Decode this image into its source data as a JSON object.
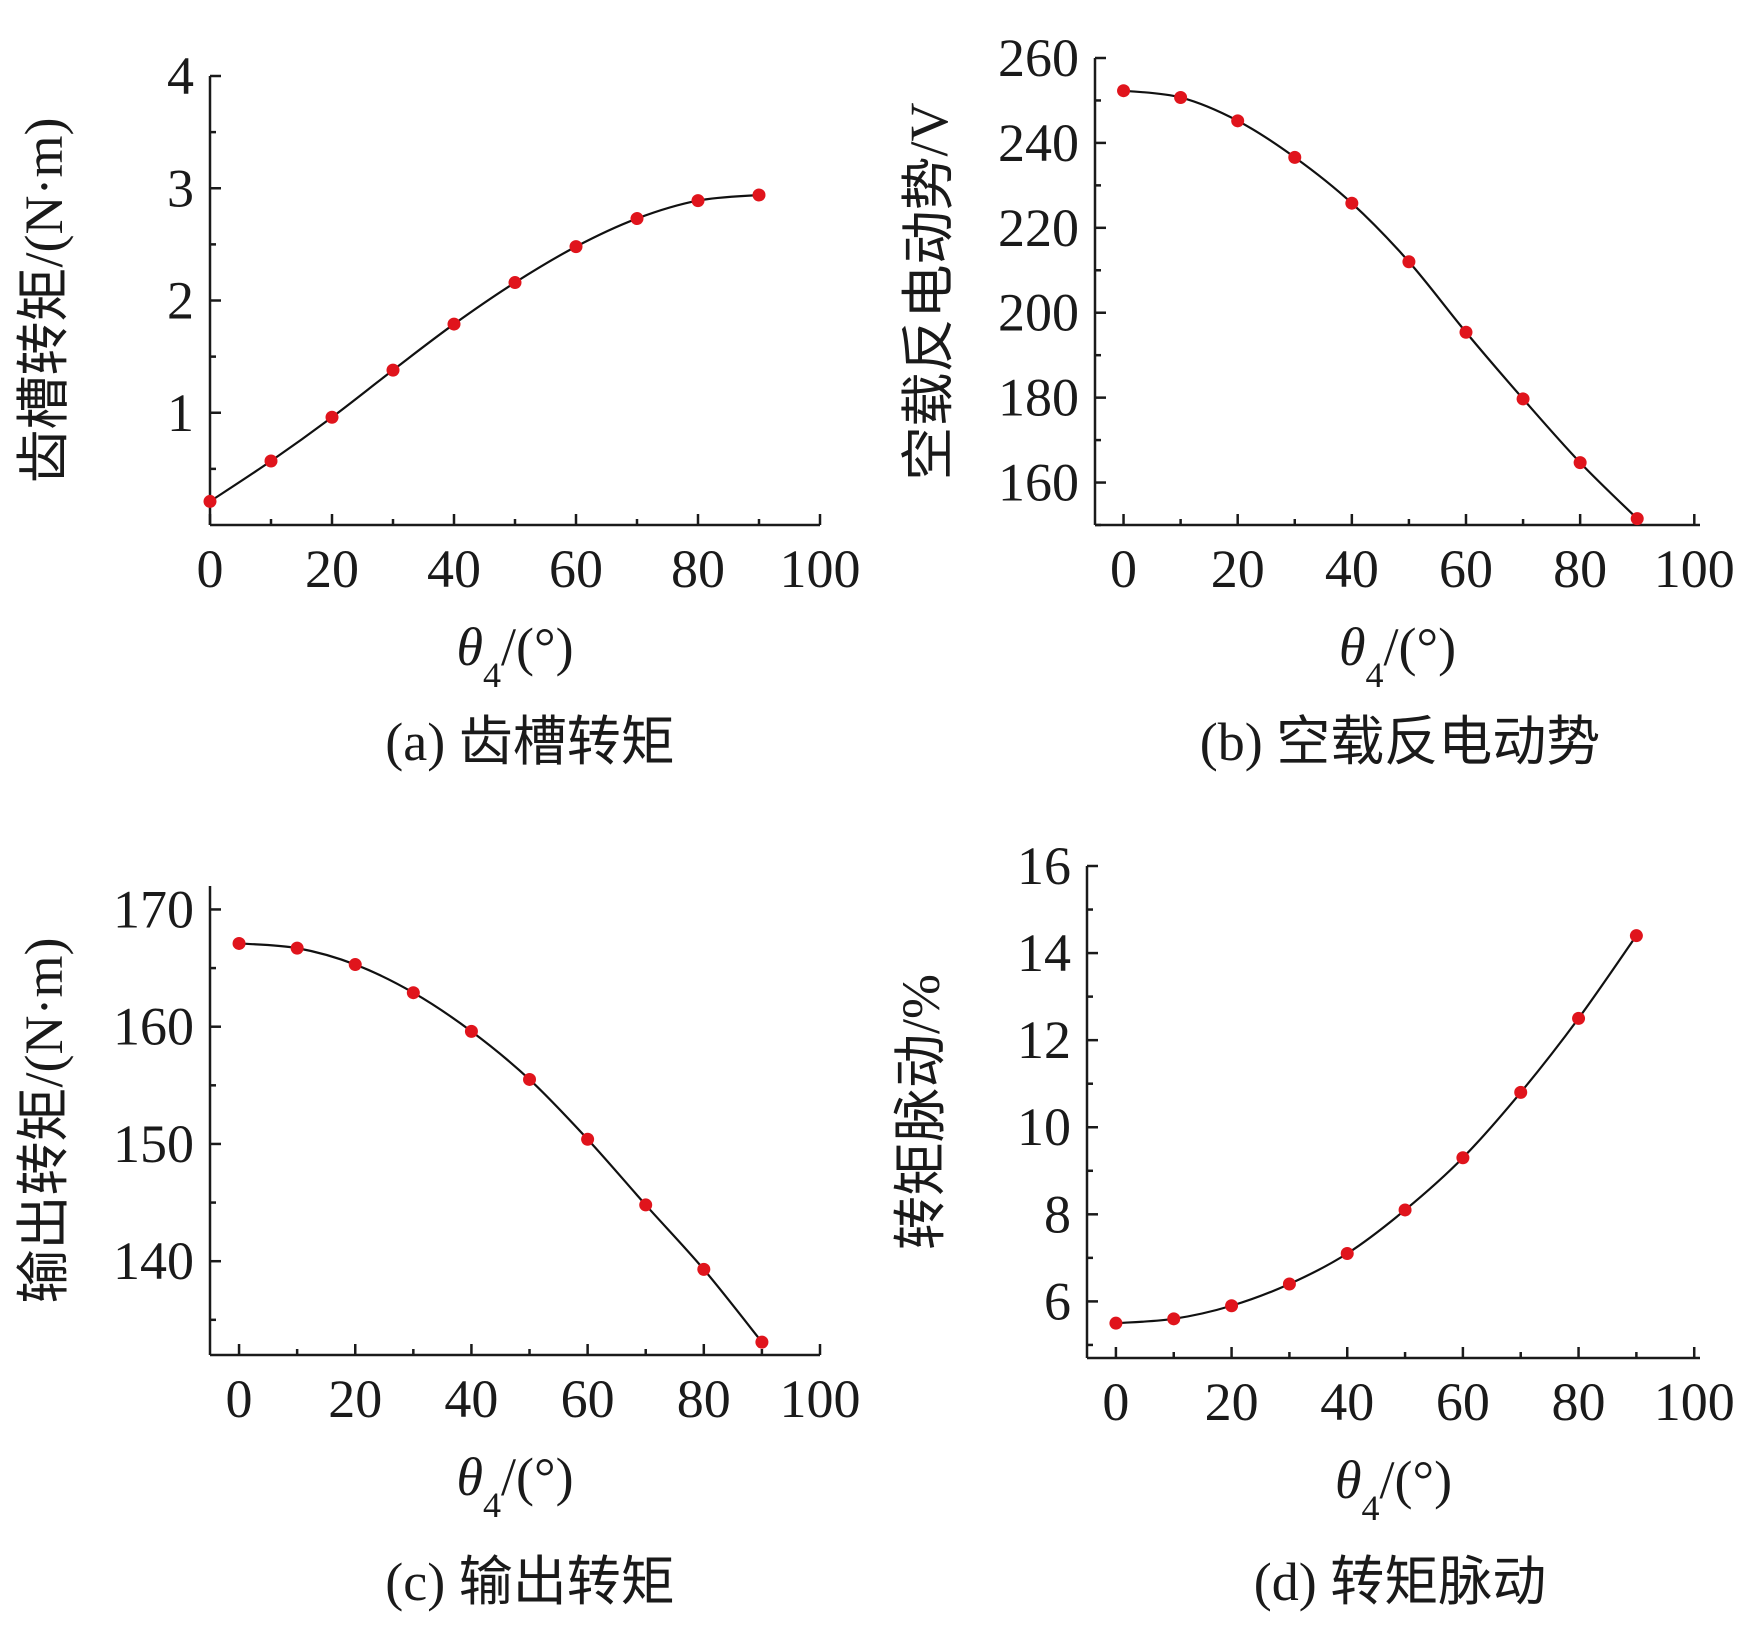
{
  "colors": {
    "marker": "#e0141c",
    "line": "#111111",
    "axis": "#1a1a1a"
  },
  "chart_data": [
    {
      "type": "line",
      "caption": "(a) 齿槽转矩",
      "xlabel": "θ4/(°)",
      "xlabel_base": "θ",
      "xlabel_sub": "4",
      "xlabel_rest": "/(°)",
      "ylabel": "齿槽转矩/(N·m)",
      "xlim": [
        0,
        100
      ],
      "ylim": [
        0,
        4
      ],
      "xticks": [
        0,
        20,
        40,
        60,
        80,
        100
      ],
      "yticks": [
        1,
        2,
        3,
        4
      ],
      "x": [
        0,
        10,
        20,
        30,
        40,
        50,
        60,
        70,
        80,
        90
      ],
      "values": [
        0.21,
        0.57,
        0.96,
        1.38,
        1.79,
        2.16,
        2.48,
        2.73,
        2.89,
        2.94
      ]
    },
    {
      "type": "line",
      "caption": "(b) 空载反电动势",
      "xlabel": "θ4/(°)",
      "xlabel_base": "θ",
      "xlabel_sub": "4",
      "xlabel_rest": "/(°)",
      "ylabel": "空载反电动势/V",
      "xlim": [
        -5,
        101
      ],
      "ylim": [
        150,
        260
      ],
      "xticks": [
        0,
        20,
        40,
        60,
        80,
        100
      ],
      "yticks": [
        160,
        180,
        200,
        220,
        240,
        260
      ],
      "x": [
        0,
        10,
        20,
        30,
        40,
        50,
        60,
        70,
        80,
        90
      ],
      "values": [
        252.3,
        250.7,
        245.2,
        236.6,
        225.8,
        212.0,
        195.4,
        179.7,
        164.7,
        151.5
      ]
    },
    {
      "type": "line",
      "caption": "(c) 输出转矩",
      "xlabel": "θ4/(°)",
      "xlabel_base": "θ",
      "xlabel_sub": "4",
      "xlabel_rest": "/(°)",
      "ylabel": "输出转矩/(N·m)",
      "xlim": [
        -5,
        100
      ],
      "ylim": [
        132,
        172
      ],
      "xticks": [
        0,
        20,
        40,
        60,
        80,
        100
      ],
      "yticks": [
        140,
        150,
        160,
        170
      ],
      "x": [
        0,
        10,
        20,
        30,
        40,
        50,
        60,
        70,
        80,
        90
      ],
      "values": [
        167.1,
        166.7,
        165.3,
        162.9,
        159.6,
        155.5,
        150.4,
        144.8,
        139.3,
        133.1
      ]
    },
    {
      "type": "line",
      "caption": "(d) 转矩脉动",
      "xlabel": "θ4/(°)",
      "xlabel_base": "θ",
      "xlabel_sub": "4",
      "xlabel_rest": "/(°)",
      "ylabel": "转矩脉动/%",
      "xlim": [
        -5,
        101
      ],
      "ylim": [
        4.7,
        16
      ],
      "xticks": [
        0,
        20,
        40,
        60,
        80,
        100
      ],
      "yticks": [
        6,
        8,
        10,
        12,
        14,
        16
      ],
      "x": [
        0,
        10,
        20,
        30,
        40,
        50,
        60,
        70,
        80,
        90
      ],
      "values": [
        5.5,
        5.6,
        5.9,
        6.4,
        7.1,
        8.1,
        9.3,
        10.8,
        12.5,
        14.4
      ]
    }
  ]
}
